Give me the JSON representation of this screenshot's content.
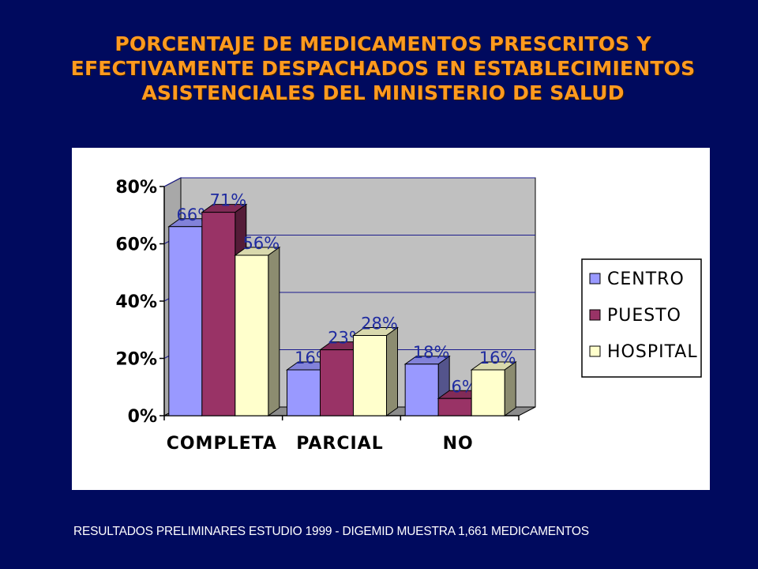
{
  "slide": {
    "title": "PORCENTAJE DE MEDICAMENTOS PRESCRITOS Y EFECTIVAMENTE DESPACHADOS EN ESTABLECIMIENTOS ASISTENCIALES DEL MINISTERIO DE SALUD",
    "footer": "RESULTADOS PRELIMINARES ESTUDIO 1999 - DIGEMID MUESTRA 1,661 MEDICAMENTOS"
  },
  "colors": {
    "background": "#000a5e",
    "title": "#ff9a1f",
    "plot_wall": "#c0c0c0",
    "gridline": "#1a1a8c",
    "label": "#1f2ba0"
  },
  "chart_data": {
    "type": "bar",
    "style": "3d-clustered-column",
    "categories": [
      "COMPLETA",
      "PARCIAL",
      "NO"
    ],
    "series": [
      {
        "name": "CENTRO",
        "values": [
          66,
          16,
          18
        ],
        "color": "#9999ff"
      },
      {
        "name": "PUESTO",
        "values": [
          71,
          23,
          6
        ],
        "color": "#993366"
      },
      {
        "name": "HOSPITAL",
        "values": [
          56,
          28,
          16
        ],
        "color": "#ffffcc"
      }
    ],
    "data_labels": [
      [
        "66%",
        "16%",
        "18%"
      ],
      [
        "71%",
        "23%",
        "6%"
      ],
      [
        "56%",
        "28%",
        "16%"
      ]
    ],
    "y_ticks": [
      "0%",
      "20%",
      "40%",
      "60%",
      "80%"
    ],
    "ylim": [
      0,
      80
    ],
    "grid": true,
    "legend_position": "right"
  }
}
